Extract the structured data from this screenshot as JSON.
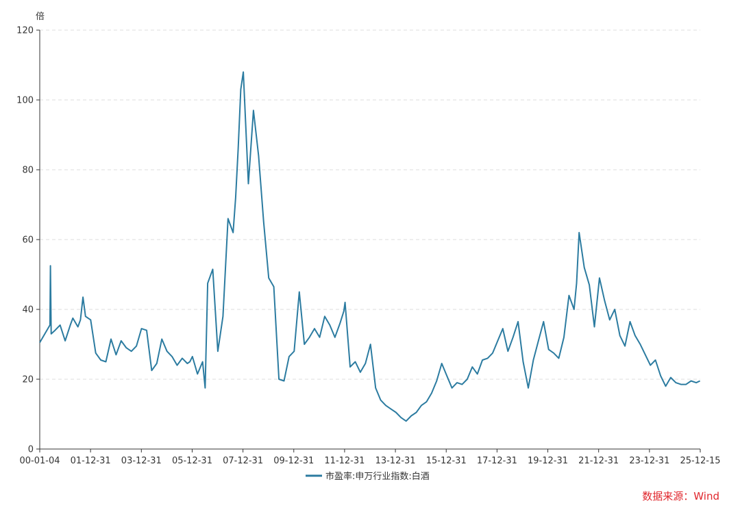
{
  "chart_data": {
    "type": "line",
    "title": "",
    "ylabel": "倍",
    "xlabel": "",
    "ylim": [
      0,
      120
    ],
    "y_ticks": [
      0,
      20,
      40,
      60,
      80,
      100,
      120
    ],
    "x_tick_labels": [
      "00-01-04",
      "01-12-31",
      "03-12-31",
      "05-12-31",
      "07-12-31",
      "09-12-31",
      "11-12-31",
      "13-12-31",
      "15-12-31",
      "17-12-31",
      "19-12-31",
      "21-12-31",
      "23-12-31",
      "25-12-15"
    ],
    "grid": "horizontal-dashed",
    "legend_position": "bottom-center",
    "series": [
      {
        "name": "市盈率:申万行业指数:白酒",
        "color": "#2b7ba0",
        "x": [
          2000.0,
          2000.2,
          2000.4,
          2000.42,
          2000.45,
          2000.6,
          2000.8,
          2001.0,
          2001.2,
          2001.3,
          2001.5,
          2001.6,
          2001.7,
          2001.8,
          2001.9,
          2002.0,
          2002.2,
          2002.4,
          2002.6,
          2002.8,
          2003.0,
          2003.2,
          2003.4,
          2003.6,
          2003.8,
          2004.0,
          2004.2,
          2004.4,
          2004.6,
          2004.8,
          2005.0,
          2005.2,
          2005.4,
          2005.6,
          2005.8,
          2005.9,
          2006.0,
          2006.2,
          2006.4,
          2006.5,
          2006.6,
          2006.8,
          2007.0,
          2007.2,
          2007.4,
          2007.6,
          2007.7,
          2007.8,
          2007.9,
          2008.0,
          2008.2,
          2008.4,
          2008.6,
          2008.8,
          2009.0,
          2009.2,
          2009.4,
          2009.6,
          2009.8,
          2010.0,
          2010.2,
          2010.4,
          2010.6,
          2010.8,
          2011.0,
          2011.2,
          2011.4,
          2011.6,
          2011.8,
          2011.95,
          2012.0,
          2012.2,
          2012.4,
          2012.6,
          2012.8,
          2013.0,
          2013.2,
          2013.4,
          2013.6,
          2013.8,
          2014.0,
          2014.2,
          2014.4,
          2014.6,
          2014.8,
          2015.0,
          2015.2,
          2015.4,
          2015.6,
          2015.8,
          2016.0,
          2016.2,
          2016.4,
          2016.6,
          2016.8,
          2017.0,
          2017.2,
          2017.4,
          2017.6,
          2017.8,
          2018.0,
          2018.2,
          2018.4,
          2018.6,
          2018.8,
          2019.0,
          2019.2,
          2019.4,
          2019.6,
          2019.8,
          2020.0,
          2020.2,
          2020.4,
          2020.6,
          2020.8,
          2021.0,
          2021.1,
          2021.2,
          2021.4,
          2021.6,
          2021.8,
          2022.0,
          2022.2,
          2022.4,
          2022.6,
          2022.8,
          2023.0,
          2023.2,
          2023.4,
          2023.6,
          2023.8,
          2024.0,
          2024.2,
          2024.4,
          2024.6,
          2024.8,
          2025.0,
          2025.2,
          2025.4,
          2025.6,
          2025.8,
          2025.95
        ],
        "values": [
          30.5,
          33.0,
          35.5,
          52.5,
          33.0,
          34.0,
          35.5,
          31.0,
          35.5,
          37.5,
          35.0,
          37.0,
          43.5,
          38.0,
          37.5,
          37.0,
          27.5,
          25.5,
          25.0,
          31.5,
          27.0,
          31.0,
          29.0,
          28.0,
          29.5,
          34.5,
          34.0,
          22.5,
          24.5,
          31.5,
          28.0,
          26.5,
          24.0,
          26.0,
          24.5,
          25.0,
          26.5,
          21.5,
          25.0,
          17.5,
          47.5,
          51.5,
          28.0,
          38.0,
          66.0,
          62.0,
          72.0,
          86.0,
          103.0,
          108.0,
          76.0,
          97.0,
          84.0,
          65.0,
          49.0,
          46.5,
          20.0,
          19.5,
          26.5,
          28.0,
          45.0,
          30.0,
          32.0,
          34.5,
          32.0,
          38.0,
          35.5,
          32.0,
          36.0,
          39.5,
          42.0,
          23.5,
          25.0,
          22.0,
          24.5,
          30.0,
          17.5,
          14.0,
          12.5,
          11.5,
          10.5,
          9.0,
          8.0,
          9.5,
          10.5,
          12.5,
          13.5,
          16.0,
          19.5,
          24.5,
          21.0,
          17.5,
          19.0,
          18.5,
          20.0,
          23.5,
          21.5,
          25.5,
          26.0,
          27.5,
          31.0,
          34.5,
          28.0,
          32.0,
          36.5,
          25.0,
          17.5,
          25.5,
          31.0,
          36.5,
          28.5,
          27.5,
          26.0,
          32.0,
          44.0,
          40.0,
          47.5,
          62.0,
          52.0,
          47.0,
          35.0,
          49.0,
          42.5,
          37.0,
          40.0,
          32.5,
          29.5,
          36.5,
          32.5,
          30.0,
          27.0,
          24.0,
          25.5,
          21.0,
          18.0,
          20.5,
          19.0,
          18.5,
          18.5,
          19.5,
          19.0,
          19.5
        ]
      }
    ]
  },
  "source_text": "数据来源：Wind"
}
